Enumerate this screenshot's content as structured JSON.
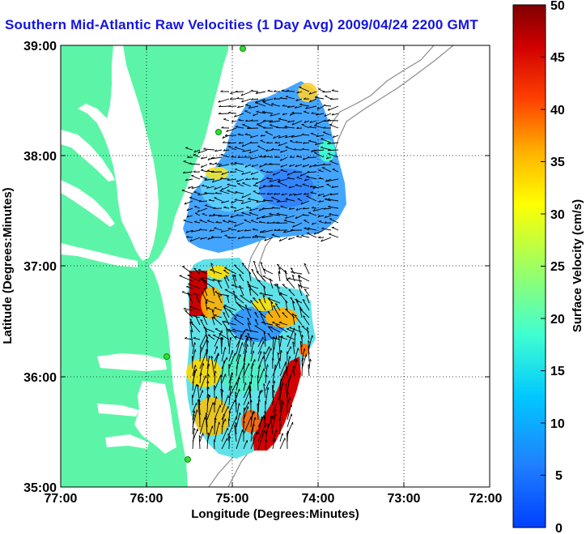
{
  "title": "Southern Mid-Atlantic Raw Velocities (1 Day Avg) 2009/04/24 2200 GMT",
  "map": {
    "xlabel": "Longitude (Degrees:Minutes)",
    "ylabel": "Latitude (Degrees:Minutes)",
    "x_ticks": [
      "77:00",
      "76:00",
      "75:00",
      "74:00",
      "73:00",
      "72:00"
    ],
    "y_ticks": [
      "39:00",
      "38:00",
      "37:00",
      "36:00",
      "35:00"
    ],
    "xlim": [
      -77,
      -72
    ],
    "ylim": [
      35,
      39
    ],
    "grid": "dotted",
    "land_color": "#5cf5a8",
    "water_color": "#ffffff",
    "station_color": "#33dd33"
  },
  "colorbar": {
    "label": "Surface Velocity (cm/s)",
    "ticks": [
      "50",
      "45",
      "40",
      "35",
      "30",
      "25",
      "20",
      "15",
      "10",
      "5",
      "0"
    ],
    "range": [
      0,
      50
    ],
    "colormap": "jet"
  }
}
